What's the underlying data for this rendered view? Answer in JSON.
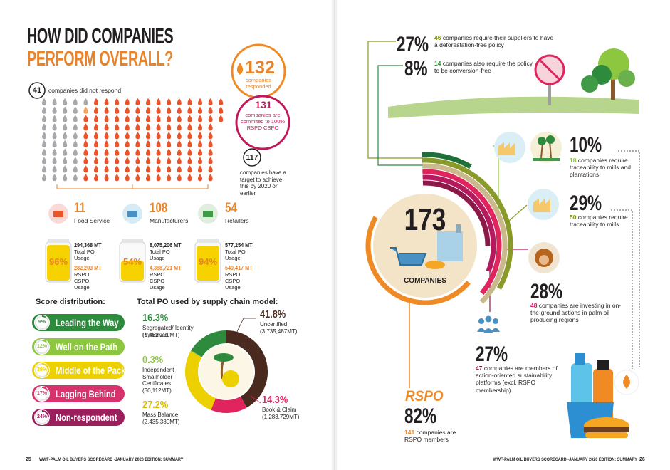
{
  "left_page": {
    "title_line1": "HOW DID COMPANIES",
    "title_line2": "PERFORM OVERALL?",
    "no_response": {
      "count": 41,
      "text": "companies did not respond"
    },
    "responded": {
      "count": 132,
      "text": "companies responded"
    },
    "committed": {
      "count": 131,
      "text": "companies are commited to 100% RSPO CSPO"
    },
    "target": {
      "count": 117,
      "text": "companies have a target to achieve this by 2020 or earlier"
    },
    "sectors": [
      {
        "count": 11,
        "name": "Food Service",
        "total": "294,368 MT",
        "total_label": "Total PO Usage",
        "rspo": "282,203 MT",
        "rspo_label": "RSPO CSPO Usage",
        "share": {
          "value": 96,
          "label": "96%"
        },
        "color": "#fbd9d9"
      },
      {
        "count": 108,
        "name": "Manufacturers",
        "total": "8,075,206 MT",
        "total_label": "Total PO Usage",
        "rspo": "4,388,721 MT",
        "rspo_label": "RSPO CSPO Usage",
        "share": {
          "value": 54,
          "label": "54%"
        },
        "color": "#d6ebf5"
      },
      {
        "count": 54,
        "name": "Retailers",
        "total": "577,254 MT",
        "total_label": "Total PO Usage",
        "rspo": "540,417 MT",
        "rspo_label": "RSPO CSPO Usage",
        "share": {
          "value": 94,
          "label": "94%"
        },
        "color": "#dfeede"
      }
    ],
    "score_title": "Score distribution:",
    "scores": [
      {
        "value": 9,
        "label": "9%",
        "name": "Leading the Way",
        "color": "#2e8b3e"
      },
      {
        "value": 12,
        "label": "12%",
        "name": "Well on the Path",
        "color": "#8dc63f"
      },
      {
        "value": 39,
        "label": "39%",
        "name": "Middle of the Pack",
        "color": "#ecd000"
      },
      {
        "value": 17,
        "label": "17%",
        "name": "Lagging Behind",
        "color": "#d6336c"
      },
      {
        "value": 24,
        "label": "24%",
        "name": "Non-respondent",
        "color": "#9b1f5c"
      }
    ],
    "donut_title": "Total PO used by supply chain model:",
    "segments": [
      {
        "value": 41.8,
        "label": "41.8%",
        "name": "Uncertified",
        "amount": "(3,735,487MT)",
        "color": "#4a2a1e"
      },
      {
        "value": 14.3,
        "label": "14.3%",
        "name": "Book & Claim",
        "amount": "(1,283,729MT)",
        "color": "#e0245e"
      },
      {
        "value": 27.2,
        "label": "27.2%",
        "name": "Mass Balance",
        "amount": "(2,435,380MT)",
        "color": "#ecd000"
      },
      {
        "value": 0.3,
        "label": "0.3%",
        "name": "Independent Smallholder Certificates",
        "amount": "(30,112MT)",
        "color": "#8dc63f"
      },
      {
        "value": 16.3,
        "label": "16.3%",
        "name": "Segregated/ Identity Preserved",
        "amount": "(1,462,120MT)",
        "color": "#2e8b3e"
      }
    ],
    "page_number": "25",
    "footer": "WWF-PALM OIL BUYERS SCORECARD -JANUARY 2020 EDITION: SUMMARY"
  },
  "right_page": {
    "total": {
      "count": 173,
      "text": "COMPANIES"
    },
    "stats": [
      {
        "pct": {
          "value": 27,
          "label": "27%"
        },
        "count": 46,
        "text": "companies require their suppliers to have a deforestation-free policy",
        "color": "#7a9a01"
      },
      {
        "pct": {
          "value": 8,
          "label": "8%"
        },
        "count": 14,
        "text": "companies also require the policy to be conversion-free",
        "color": "#2e8b3e"
      },
      {
        "pct": {
          "value": 10,
          "label": "10%"
        },
        "count": 18,
        "text": "companies require traceability to mills and plantations",
        "color": "#8dc63f"
      },
      {
        "pct": {
          "value": 29,
          "label": "29%"
        },
        "count": 50,
        "text": "companies require traceability to mills",
        "color": "#7a9a01"
      },
      {
        "pct": {
          "value": 28,
          "label": "28%"
        },
        "count": 48,
        "text": "companies are investing in on-the-ground actions in palm oil producing regions",
        "color": "#c2185b"
      },
      {
        "pct": {
          "value": 27,
          "label": "27%"
        },
        "count": 47,
        "text": "companies are members of action-oriented sustainability platforms (excl. RSPO membership)",
        "color": "#8b1a4a"
      }
    ],
    "rspo": {
      "heading": "RSPO",
      "pct": {
        "value": 82,
        "label": "82%"
      },
      "count": 141,
      "text": "companies are RSPO members",
      "color": "#f08a24"
    },
    "footer": "WWF-PALM OIL BUYERS SCORECARD -JANUARY 2020 EDITION: SUMMARY",
    "page_number": "26"
  }
}
